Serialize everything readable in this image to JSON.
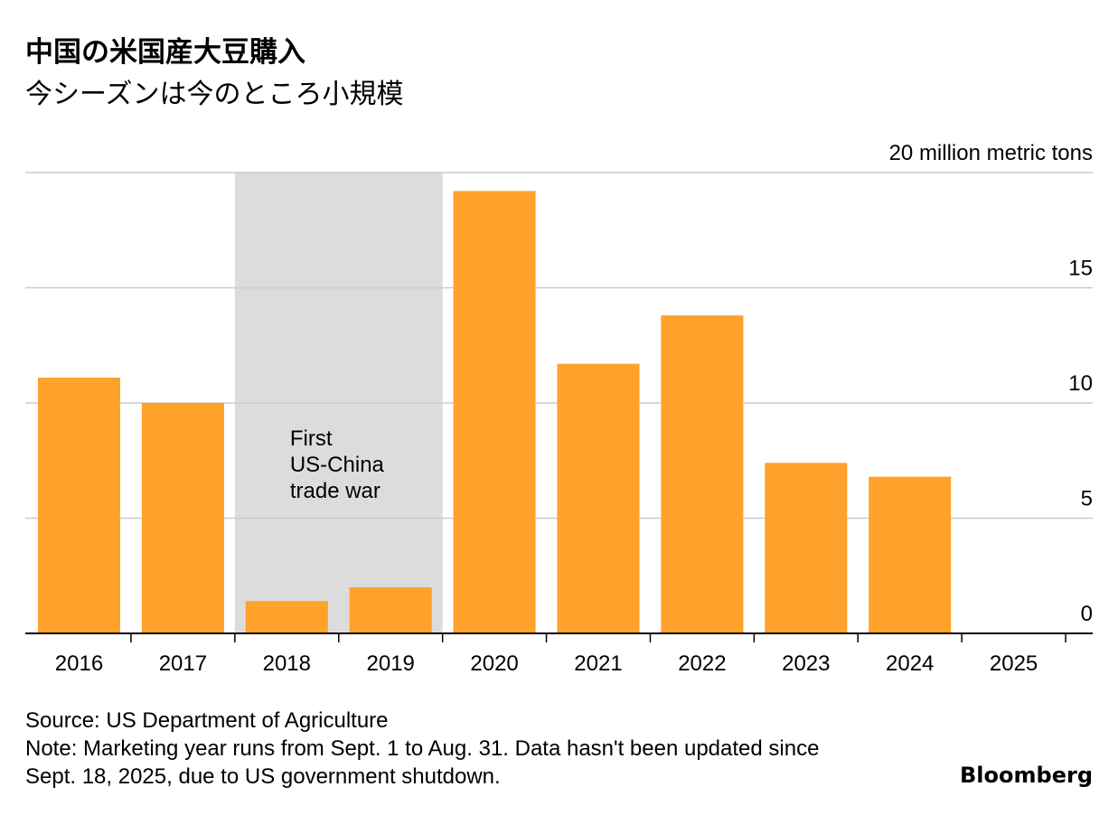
{
  "header": {
    "title": "中国の米国産大豆購入",
    "subtitle": "今シーズンは今のところ小規模"
  },
  "chart_data": {
    "type": "bar",
    "ylabel": "20 million metric tons",
    "ylim": [
      0,
      20
    ],
    "yticks": [
      "0",
      "5",
      "10",
      "15"
    ],
    "grid": true,
    "categories": [
      "2016",
      "2017",
      "2018",
      "2019",
      "2020",
      "2021",
      "2022",
      "2023",
      "2024",
      "2025"
    ],
    "values": [
      11.1,
      10.0,
      1.4,
      2.0,
      19.2,
      11.7,
      13.8,
      7.4,
      6.8,
      0
    ],
    "bar_color": "#ffa12b",
    "highlight_period": {
      "from": "2018",
      "to": "2019",
      "label": [
        "First",
        "US-China",
        "trade war"
      ],
      "color": "#dcdcdc"
    }
  },
  "footer": {
    "source": "Source: US Department of Agriculture",
    "note_line1": "Note: Marketing year runs from Sept. 1 to Aug. 31. Data hasn't been updated since",
    "note_line2": "Sept. 18, 2025, due to US government shutdown."
  },
  "brand": "Bloomberg"
}
